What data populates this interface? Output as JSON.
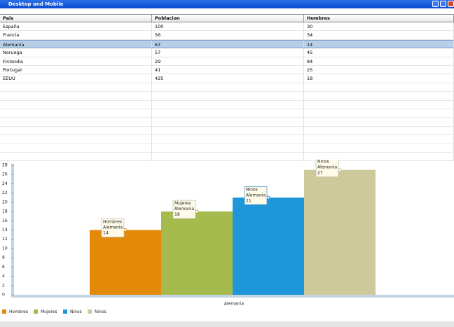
{
  "window": {
    "title": "Desktop and Mobile"
  },
  "table": {
    "headers": [
      "Pais",
      "Poblacion",
      "Hombres"
    ],
    "rows": [
      [
        "España",
        100,
        30
      ],
      [
        "Francia",
        56,
        34
      ],
      [
        "Alemania",
        67,
        14
      ],
      [
        "Noruega",
        57,
        45
      ],
      [
        "Finlandia",
        29,
        84
      ],
      [
        "Portugal",
        41,
        25
      ],
      [
        "EEUU",
        425,
        18
      ]
    ],
    "selected_row": 2
  },
  "chart_data": {
    "type": "bar",
    "categories": [
      "Alemania"
    ],
    "series": [
      {
        "name": "Hombres",
        "color": "#e3890a",
        "values": [
          14
        ]
      },
      {
        "name": "Mujeres",
        "color": "#a5bb4e",
        "values": [
          18
        ]
      },
      {
        "name": "Ninos",
        "color": "#1e96d9",
        "values": [
          21
        ]
      },
      {
        "name": "Ninos",
        "color": "#cdc99b",
        "values": [
          27
        ]
      }
    ],
    "ylim": [
      0,
      28
    ],
    "yticks": [
      0,
      2,
      4,
      6,
      8,
      10,
      12,
      14,
      16,
      18,
      20,
      22,
      24,
      26,
      28
    ]
  }
}
